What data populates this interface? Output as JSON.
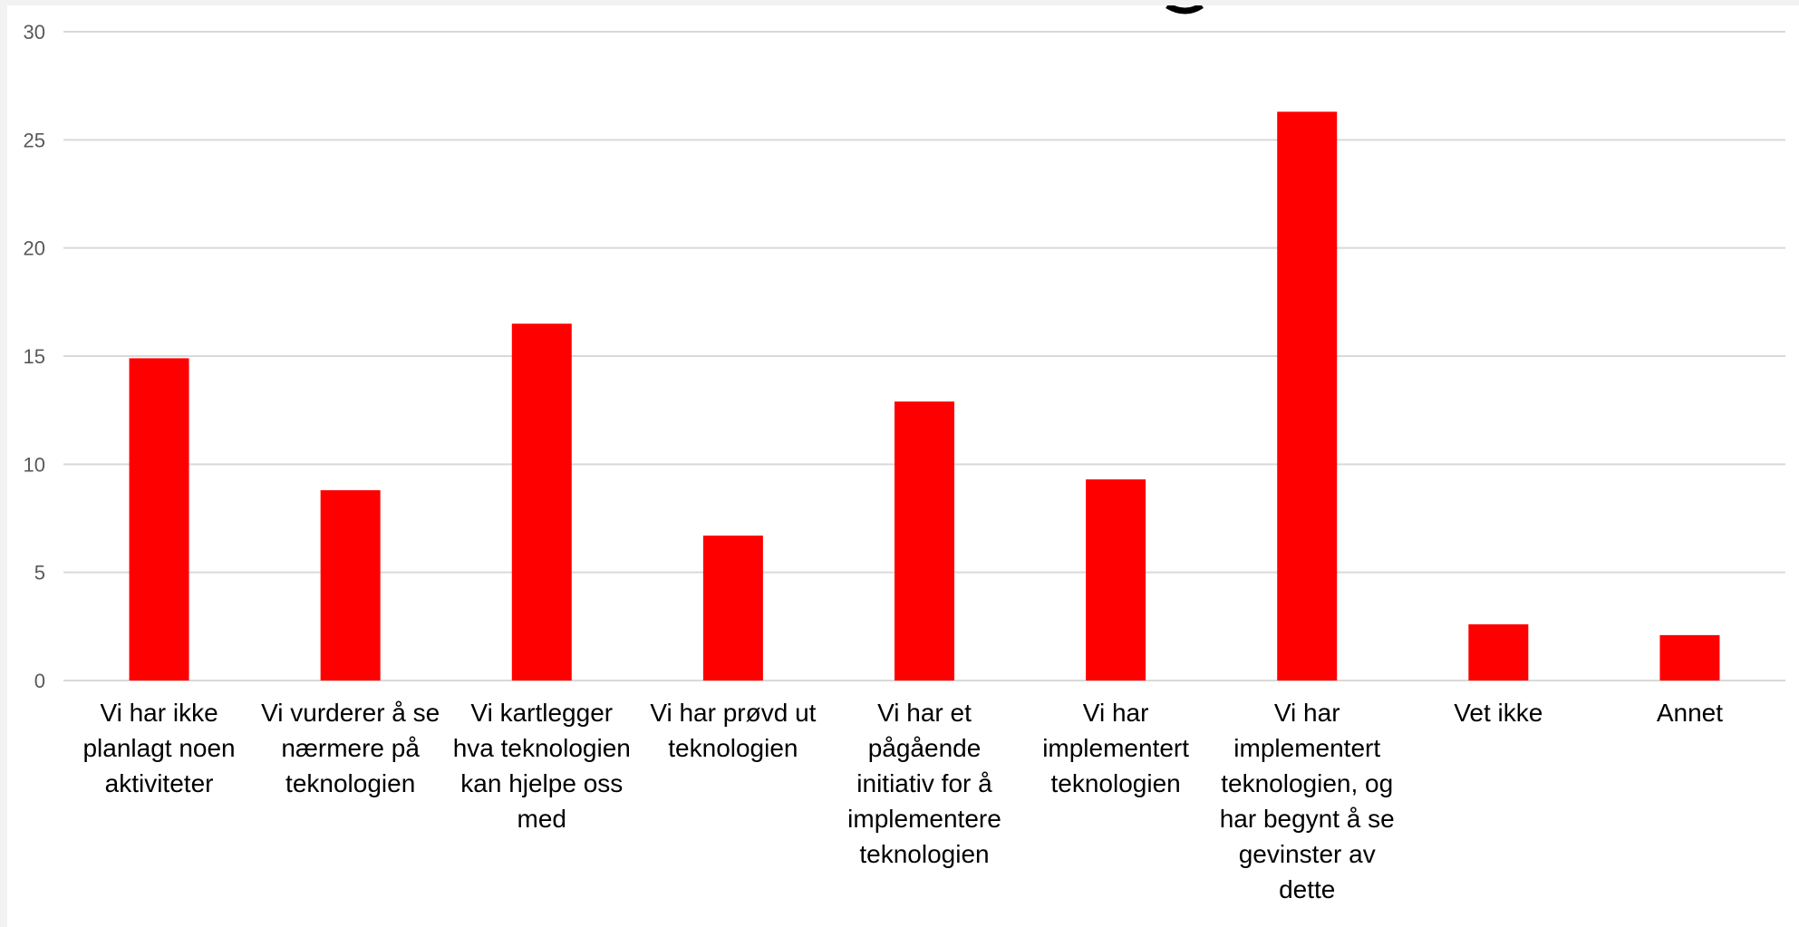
{
  "chart_data": {
    "type": "bar",
    "title": "",
    "xlabel": "",
    "ylabel": "",
    "ylim": [
      0,
      30
    ],
    "yticks": [
      0,
      5,
      10,
      15,
      20,
      25,
      30
    ],
    "grid": true,
    "legend": "none",
    "bar_color": "#ff0000",
    "categories": [
      [
        "Vi har ikke",
        "planlagt noen",
        "aktiviteter"
      ],
      [
        "Vi vurderer å se",
        "nærmere på",
        "teknologien"
      ],
      [
        "Vi kartlegger",
        "hva teknologien",
        "kan hjelpe oss",
        "med"
      ],
      [
        "Vi har prøvd ut",
        "teknologien"
      ],
      [
        "Vi har et",
        "pågående",
        "initiativ for å",
        "implementere",
        "teknologien"
      ],
      [
        "Vi har",
        "implementert",
        "teknologien"
      ],
      [
        "Vi har",
        "implementert",
        "teknologien, og",
        "har begynt å se",
        "gevinster av",
        "dette"
      ],
      [
        "Vet ikke"
      ],
      [
        "Annet"
      ]
    ],
    "values": [
      14.9,
      8.8,
      16.5,
      6.7,
      12.9,
      9.3,
      26.3,
      2.6,
      2.1
    ]
  }
}
